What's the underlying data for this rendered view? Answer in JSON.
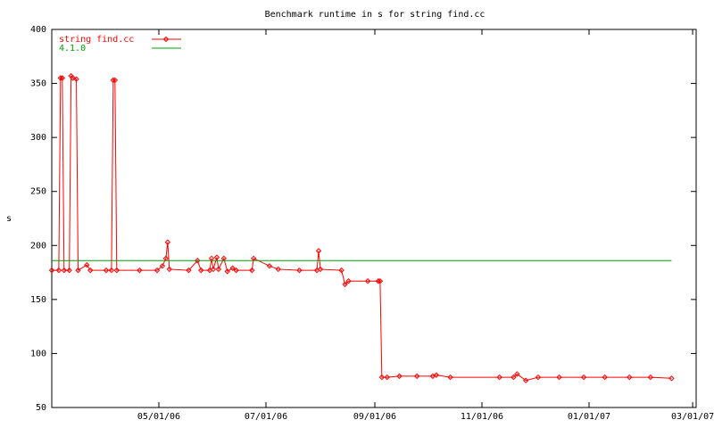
{
  "chart_data": {
    "type": "line",
    "title": "Benchmark runtime in s for string find.cc",
    "y_label": "s",
    "legend": "top-left",
    "grid": false,
    "ylim": [
      50,
      400
    ],
    "yticks": [
      50,
      100,
      150,
      200,
      250,
      300,
      350,
      400
    ],
    "xlim": [
      "2006-03-01",
      "2007-03-03"
    ],
    "xticks": [
      {
        "value": "2006-05-01",
        "label": "05/01/06"
      },
      {
        "value": "2006-07-01",
        "label": "07/01/06"
      },
      {
        "value": "2006-09-01",
        "label": "09/01/06"
      },
      {
        "value": "2006-11-01",
        "label": "11/01/06"
      },
      {
        "value": "2007-01-01",
        "label": "01/01/07"
      },
      {
        "value": "2007-03-01",
        "label": "03/01/07"
      }
    ],
    "series": [
      {
        "name": "string find.cc",
        "color": "#ff0000",
        "markers": true,
        "x": [
          "2006-03-01",
          "2006-03-05",
          "2006-03-06",
          "2006-03-07",
          "2006-03-08",
          "2006-03-11",
          "2006-03-12",
          "2006-03-13",
          "2006-03-15",
          "2006-03-16",
          "2006-03-21",
          "2006-03-23",
          "2006-04-01",
          "2006-04-04",
          "2006-04-05",
          "2006-04-06",
          "2006-04-07",
          "2006-04-20",
          "2006-04-30",
          "2006-05-03",
          "2006-05-05",
          "2006-05-06",
          "2006-05-07",
          "2006-05-18",
          "2006-05-23",
          "2006-05-25",
          "2006-05-30",
          "2006-05-31",
          "2006-06-01",
          "2006-06-03",
          "2006-06-04",
          "2006-06-07",
          "2006-06-09",
          "2006-06-12",
          "2006-06-14",
          "2006-06-23",
          "2006-06-24",
          "2006-07-03",
          "2006-07-08",
          "2006-07-20",
          "2006-07-30",
          "2006-07-31",
          "2006-08-01",
          "2006-08-13",
          "2006-08-15",
          "2006-08-17",
          "2006-08-28",
          "2006-09-03",
          "2006-09-04",
          "2006-09-05",
          "2006-09-08",
          "2006-09-15",
          "2006-09-25",
          "2006-10-04",
          "2006-10-06",
          "2006-10-14",
          "2006-11-11",
          "2006-11-19",
          "2006-11-21",
          "2006-11-26",
          "2006-12-03",
          "2006-12-15",
          "2006-12-29",
          "2007-01-10",
          "2007-01-24",
          "2007-02-05",
          "2007-02-17"
        ],
        "values": [
          177,
          177,
          355,
          355,
          177,
          177,
          357,
          355,
          354,
          177,
          182,
          177,
          177,
          177,
          353,
          353,
          177,
          177,
          177,
          181,
          188,
          203,
          178,
          177,
          186,
          177,
          177,
          188,
          178,
          189,
          178,
          188,
          176,
          179,
          177,
          177,
          188,
          181,
          178,
          177,
          177,
          195,
          178,
          177,
          164,
          167,
          167,
          167,
          167,
          78,
          78,
          79,
          79,
          79,
          80,
          78,
          78,
          78,
          81,
          75,
          78,
          78,
          78,
          78,
          78,
          78,
          77
        ]
      },
      {
        "name": "4.1.0",
        "color": "#00a000",
        "markers": false,
        "x": [
          "2006-03-01",
          "2007-02-17"
        ],
        "values": [
          186,
          186
        ]
      }
    ]
  }
}
